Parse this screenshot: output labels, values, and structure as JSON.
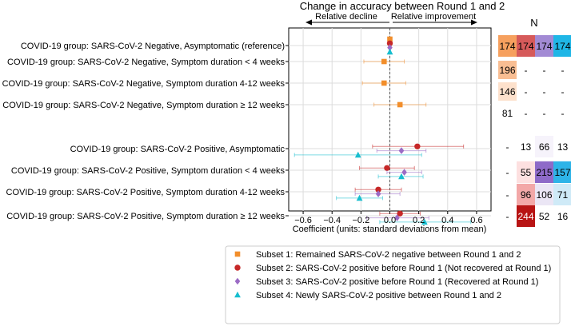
{
  "chart_data": {
    "type": "forest",
    "title": "Change in accuracy between Round 1 and 2",
    "xlabel": "Coefficient (units: standard deviations from mean)",
    "xlim": [
      -0.7,
      0.7
    ],
    "xticks": [
      -0.6,
      -0.4,
      -0.2,
      0.0,
      0.2,
      0.4,
      0.6
    ],
    "xtick_labels": [
      "−0.6",
      "−0.4",
      "−0.2",
      "0.0",
      "0.2",
      "0.4",
      "0.6"
    ],
    "decline_label": "Relative decline",
    "improvement_label": "Relative improvement",
    "categories": [
      "COVID-19 group: SARS-CoV-2 Negative, Asymptomatic (reference)",
      "COVID-19 group: SARS-CoV-2 Negative, Symptom duration < 4 weeks",
      "COVID-19 group: SARS-CoV-2 Negative, Symptom duration 4-12 weeks",
      "COVID-19 group: SARS-CoV-2 Negative, Symptom duration ≥ 12 weeks",
      "COVID-19 group: SARS-CoV-2 Positive, Asymptomatic",
      "COVID-19 group: SARS-CoV-2 Positive, Symptom duration < 4 weeks",
      "COVID-19 group: SARS-CoV-2 Positive, Symptom duration 4-12 weeks",
      "COVID-19 group: SARS-CoV-2 Positive, Symptom duration ≥ 12 weeks"
    ],
    "series": [
      {
        "name": "Subset 1: Remained SARS-CoV-2 negative between Round 1 and 2",
        "color": "#f28e2b",
        "marker": "square",
        "points": [
          {
            "row": 0,
            "est": 0.0,
            "lo": -0.005,
            "hi": 0.005
          },
          {
            "row": 1,
            "est": -0.04,
            "lo": -0.18,
            "hi": 0.1
          },
          {
            "row": 2,
            "est": -0.04,
            "lo": -0.19,
            "hi": 0.11
          },
          {
            "row": 3,
            "est": 0.07,
            "lo": -0.11,
            "hi": 0.25
          }
        ]
      },
      {
        "name": "Subset 2: SARS-CoV-2 positive before Round 1 (Not recovered at Round 1)",
        "color": "#c62828",
        "marker": "circle",
        "points": [
          {
            "row": 0,
            "est": 0.0,
            "lo": -0.005,
            "hi": 0.005
          },
          {
            "row": 4,
            "est": 0.19,
            "lo": -0.12,
            "hi": 0.51
          },
          {
            "row": 5,
            "est": -0.02,
            "lo": -0.21,
            "hi": 0.17
          },
          {
            "row": 6,
            "est": -0.08,
            "lo": -0.24,
            "hi": 0.08
          },
          {
            "row": 7,
            "est": 0.07,
            "lo": -0.07,
            "hi": 0.21
          }
        ]
      },
      {
        "name": "Subset 3: SARS-CoV-2 positive before Round 1 (Recovered at Round 1)",
        "color": "#9b6bc5",
        "marker": "diamond",
        "points": [
          {
            "row": 0,
            "est": 0.0,
            "lo": -0.005,
            "hi": 0.005
          },
          {
            "row": 4,
            "est": 0.08,
            "lo": -0.09,
            "hi": 0.25
          },
          {
            "row": 5,
            "est": 0.1,
            "lo": -0.02,
            "hi": 0.22
          },
          {
            "row": 6,
            "est": -0.08,
            "lo": -0.24,
            "hi": 0.07
          },
          {
            "row": 7,
            "est": 0.05,
            "lo": -0.16,
            "hi": 0.27
          }
        ]
      },
      {
        "name": "Subset 4: Newly SARS-CoV-2 positive between Round 1 and 2",
        "color": "#17becf",
        "marker": "triangle",
        "points": [
          {
            "row": 0,
            "est": 0.0,
            "lo": -0.005,
            "hi": 0.005
          },
          {
            "row": 4,
            "est": -0.22,
            "lo": -0.66,
            "hi": 0.22
          },
          {
            "row": 5,
            "est": 0.08,
            "lo": -0.08,
            "hi": 0.23
          },
          {
            "row": 6,
            "est": -0.21,
            "lo": -0.37,
            "hi": -0.05
          },
          {
            "row": 7,
            "est": 0.24,
            "lo": -0.07,
            "hi": 0.56
          }
        ]
      }
    ],
    "n_table": {
      "title": "N",
      "rows": [
        [
          "174",
          "174",
          "174",
          "174"
        ],
        [
          "196",
          "-",
          "-",
          "-"
        ],
        [
          "146",
          "-",
          "-",
          "-"
        ],
        [
          "81",
          "-",
          "-",
          "-"
        ],
        [
          "-",
          "13",
          "66",
          "13"
        ],
        [
          "-",
          "55",
          "215",
          "157"
        ],
        [
          "-",
          "96",
          "106",
          "71"
        ],
        [
          "-",
          "244",
          "52",
          "16"
        ]
      ],
      "cell_colors": [
        [
          "#f6a05e",
          "#d65a5a",
          "#a28ad4",
          "#1fb6e6"
        ],
        [
          "#f9be93",
          null,
          null,
          null
        ],
        [
          "#fde1cc",
          null,
          null,
          null
        ],
        [
          null,
          null,
          null,
          null
        ],
        [
          null,
          null,
          "#f6f3fb",
          null
        ],
        [
          null,
          "#fde0e0",
          "#8e6ac8",
          "#2eb4e8"
        ],
        [
          null,
          "#f3a8a8",
          "#ebe6f5",
          "#cfeaf7"
        ],
        [
          null,
          "#b81414",
          null,
          null
        ]
      ]
    }
  }
}
